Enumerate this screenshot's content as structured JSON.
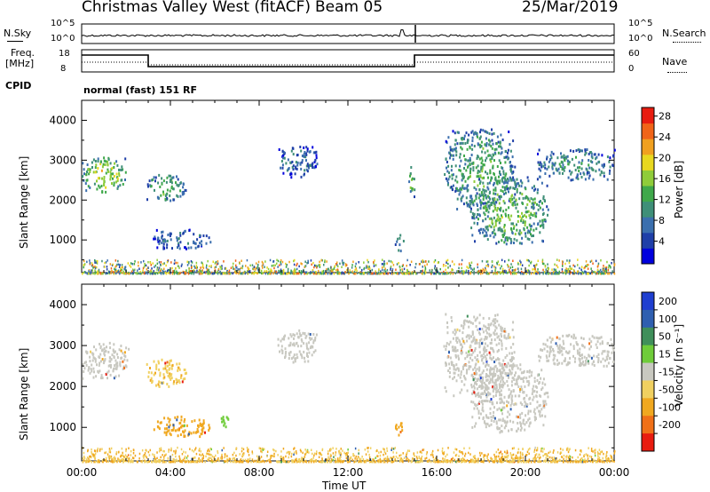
{
  "header": {
    "station": "Christmas Valley West (fitACF)",
    "beam": "Beam 05",
    "date": "25/Mar/2019"
  },
  "noise_panel": {
    "left_label": "N.Sky",
    "left_ticks": [
      "10^5",
      "10^0"
    ],
    "right_label": "N.Search",
    "right_ticks": [
      "10^5",
      "10^0"
    ]
  },
  "freq_panel": {
    "left_label_1": "Freq.",
    "left_label_2": "[MHz]",
    "left_ticks": [
      "18",
      "8"
    ],
    "right_label": "Nave",
    "right_ticks": [
      "60",
      "0"
    ],
    "cpid_label": "CPID",
    "cpid_value": "normal (fast) 151 RF"
  },
  "colors": {
    "power_scale": [
      "#0000dd",
      "#1f3fa8",
      "#3b6fae",
      "#3f8f78",
      "#3fa84a",
      "#8fcc3a",
      "#e8d820",
      "#f0a020",
      "#f06418",
      "#e81c10"
    ],
    "velocity_scale": [
      "#1f3fd0",
      "#2f5fb0",
      "#3f8f5a",
      "#6fcc3a",
      "#c8c8c0",
      "#f0d060",
      "#f0a820",
      "#f07018",
      "#e81c10"
    ]
  },
  "chart_data": [
    {
      "type": "heatmap",
      "title": "",
      "xlabel": "Time UT",
      "ylabel": "Slant Range [km]",
      "x_ticks": [
        "00:00",
        "04:00",
        "08:00",
        "12:00",
        "16:00",
        "20:00",
        "00:00"
      ],
      "xlim": [
        0,
        24
      ],
      "ylim": [
        180,
        4500
      ],
      "y_ticks": [
        1000,
        2000,
        3000,
        4000
      ],
      "colorbar_label": "Power [dB]",
      "colorbar_ticks": [
        4,
        8,
        12,
        16,
        20,
        24,
        28
      ],
      "clim": [
        0,
        30
      ],
      "blobs": [
        {
          "t0": 0.0,
          "t1": 2.0,
          "r0": 2200,
          "r1": 3100,
          "v": 18
        },
        {
          "t0": 2.9,
          "t1": 4.7,
          "r0": 2000,
          "r1": 2700,
          "v": 13
        },
        {
          "t0": 3.2,
          "t1": 5.8,
          "r0": 800,
          "r1": 1300,
          "v": 8
        },
        {
          "t0": 8.8,
          "t1": 10.6,
          "r0": 2600,
          "r1": 3400,
          "v": 8
        },
        {
          "t0": 14.1,
          "t1": 14.5,
          "r0": 750,
          "r1": 1200,
          "v": 12
        },
        {
          "t0": 14.7,
          "t1": 15.0,
          "r0": 2100,
          "r1": 2900,
          "v": 15
        },
        {
          "t0": 16.3,
          "t1": 19.5,
          "r0": 1800,
          "r1": 3800,
          "v": 13
        },
        {
          "t0": 17.5,
          "t1": 21.0,
          "r0": 900,
          "r1": 2600,
          "v": 15
        },
        {
          "t0": 20.5,
          "t1": 24.0,
          "r0": 2500,
          "r1": 3300,
          "v": 11
        }
      ]
    },
    {
      "type": "heatmap",
      "title": "",
      "xlabel": "Time UT",
      "ylabel": "Slant Range [km]",
      "x_ticks": [
        "00:00",
        "04:00",
        "08:00",
        "12:00",
        "16:00",
        "20:00",
        "00:00"
      ],
      "xlim": [
        0,
        24
      ],
      "ylim": [
        180,
        4500
      ],
      "y_ticks": [
        1000,
        2000,
        3000,
        4000
      ],
      "colorbar_label": "Velocity [m s⁻¹]",
      "colorbar_ticks": [
        200,
        100,
        50,
        15,
        -15,
        -50,
        -100,
        -200
      ],
      "blobs": [
        {
          "t0": 0.0,
          "t1": 2.1,
          "r0": 2200,
          "r1": 3100,
          "v": 0
        },
        {
          "t0": 2.9,
          "t1": 4.7,
          "r0": 2000,
          "r1": 2700,
          "v": -40
        },
        {
          "t0": 3.2,
          "t1": 5.8,
          "r0": 800,
          "r1": 1300,
          "v": -70
        },
        {
          "t0": 6.2,
          "t1": 6.6,
          "r0": 1000,
          "r1": 1400,
          "v": 40
        },
        {
          "t0": 8.8,
          "t1": 10.6,
          "r0": 2600,
          "r1": 3400,
          "v": 0
        },
        {
          "t0": 14.1,
          "t1": 14.5,
          "r0": 750,
          "r1": 1200,
          "v": -60
        },
        {
          "t0": 16.3,
          "t1": 19.5,
          "r0": 1800,
          "r1": 3800,
          "v": 0
        },
        {
          "t0": 17.5,
          "t1": 21.0,
          "r0": 900,
          "r1": 2600,
          "v": 0
        },
        {
          "t0": 20.5,
          "t1": 24.0,
          "r0": 2500,
          "r1": 3300,
          "v": 0
        }
      ]
    }
  ]
}
